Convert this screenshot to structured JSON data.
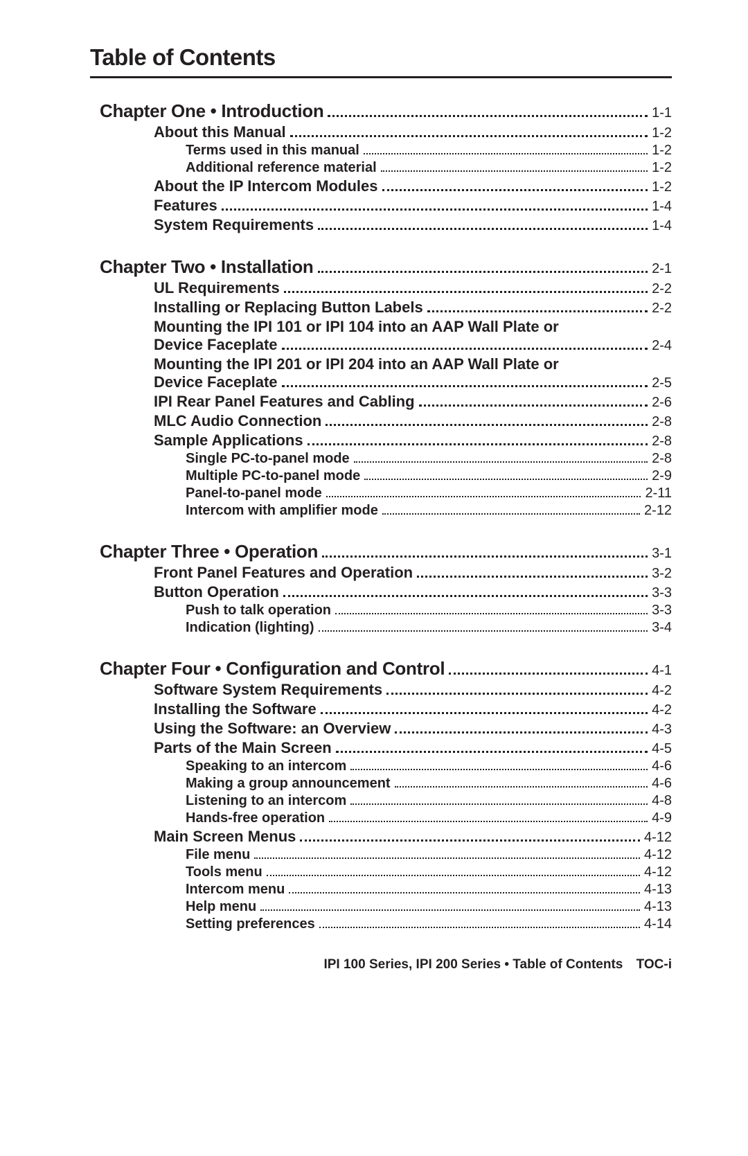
{
  "title": "Table of Contents",
  "title_fontsize": 33,
  "text_color": "#231f20",
  "bg_color": "#ffffff",
  "fontsize_lvl1": 26,
  "fontsize_lvl2": 22,
  "fontsize_lvl3": 20,
  "fontsize_page": 20,
  "footer": {
    "text": "IPI 100 Series, IPI 200 Series • Table of Contents",
    "page": "TOC-i",
    "fontsize": 19
  },
  "entries": [
    {
      "level": 1,
      "label": "Chapter One • Introduction",
      "page": "1-1"
    },
    {
      "level": 2,
      "label": "About this Manual",
      "page": "1-2"
    },
    {
      "level": 3,
      "label": "Terms used in this manual",
      "page": "1-2"
    },
    {
      "level": 3,
      "label": "Additional reference material",
      "page": "1-2"
    },
    {
      "level": 2,
      "label": "About the IP Intercom Modules",
      "page": "1-2"
    },
    {
      "level": 2,
      "label": "Features",
      "page": "1-4"
    },
    {
      "level": 2,
      "label": "System Requirements",
      "page": "1-4"
    },
    {
      "level": 1,
      "label": "Chapter Two • Installation",
      "page": "2-1"
    },
    {
      "level": 2,
      "label": "UL Requirements",
      "page": "2-2"
    },
    {
      "level": 2,
      "label": "Installing or Replacing Button Labels",
      "page": "2-2"
    },
    {
      "level": 2,
      "wrap": true,
      "label1": "Mounting the IPI 101 or IPI 104 into an AAP Wall Plate or",
      "label2": "Device Faceplate",
      "page": "2-4"
    },
    {
      "level": 2,
      "wrap": true,
      "label1": "Mounting the IPI 201 or IPI 204 into an AAP Wall Plate or",
      "label2": "Device Faceplate",
      "page": "2-5"
    },
    {
      "level": 2,
      "label": "IPI Rear Panel Features and Cabling",
      "page": "2-6"
    },
    {
      "level": 2,
      "label": "MLC Audio Connection",
      "page": "2-8"
    },
    {
      "level": 2,
      "label": "Sample Applications",
      "page": "2-8"
    },
    {
      "level": 3,
      "label": "Single PC-to-panel mode",
      "page": "2-8"
    },
    {
      "level": 3,
      "label": "Multiple PC-to-panel mode",
      "page": "2-9"
    },
    {
      "level": 3,
      "label": "Panel-to-panel mode",
      "page": "2-11"
    },
    {
      "level": 3,
      "label": "Intercom with amplifier mode",
      "page": "2-12"
    },
    {
      "level": 1,
      "label": "Chapter Three • Operation",
      "page": "3-1"
    },
    {
      "level": 2,
      "label": "Front Panel Features and Operation",
      "page": "3-2"
    },
    {
      "level": 2,
      "label": "Button Operation",
      "page": "3-3"
    },
    {
      "level": 3,
      "label": "Push to talk operation",
      "page": "3-3"
    },
    {
      "level": 3,
      "label": "Indication (lighting)",
      "page": "3-4"
    },
    {
      "level": 1,
      "label": "Chapter Four • Configuration and Control",
      "page": "4-1"
    },
    {
      "level": 2,
      "label": "Software System Requirements",
      "page": "4-2"
    },
    {
      "level": 2,
      "label": "Installing the Software",
      "page": "4-2"
    },
    {
      "level": 2,
      "label": "Using the Software: an Overview",
      "page": "4-3"
    },
    {
      "level": 2,
      "label": "Parts of the Main Screen",
      "page": "4-5"
    },
    {
      "level": 3,
      "label": "Speaking to an intercom",
      "page": "4-6"
    },
    {
      "level": 3,
      "label": "Making a group announcement",
      "page": "4-6"
    },
    {
      "level": 3,
      "label": "Listening to an intercom",
      "page": "4-8"
    },
    {
      "level": 3,
      "label": "Hands-free operation",
      "page": "4-9"
    },
    {
      "level": 2,
      "label": "Main Screen Menus",
      "page": "4-12"
    },
    {
      "level": 3,
      "label": "File menu",
      "page": "4-12"
    },
    {
      "level": 3,
      "label": "Tools menu",
      "page": "4-12"
    },
    {
      "level": 3,
      "label": "Intercom menu",
      "page": "4-13"
    },
    {
      "level": 3,
      "label": "Help menu",
      "page": "4-13"
    },
    {
      "level": 3,
      "label": "Setting preferences",
      "page": "4-14"
    }
  ]
}
